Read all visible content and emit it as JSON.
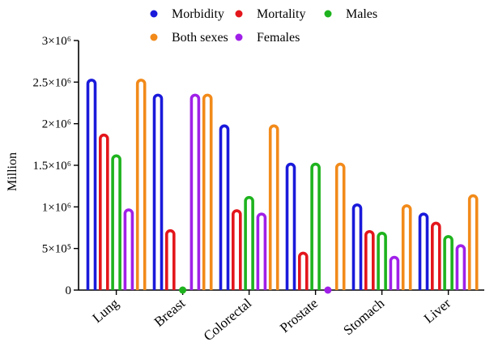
{
  "chart_data": {
    "type": "bar",
    "style": "lollipop-outline",
    "title": "",
    "xlabel": "",
    "ylabel": "Million",
    "ylim": [
      0,
      3000000
    ],
    "yticks": [
      {
        "value": 0,
        "label": "0"
      },
      {
        "value": 500000,
        "label": "5×10⁵"
      },
      {
        "value": 1000000,
        "label": "1×10⁶"
      },
      {
        "value": 1500000,
        "label": "1.5×10⁶"
      },
      {
        "value": 2000000,
        "label": "2×10⁶"
      },
      {
        "value": 2500000,
        "label": "2.5×10⁶"
      },
      {
        "value": 3000000,
        "label": "3×10⁶"
      }
    ],
    "categories": [
      "Lung",
      "Breast",
      "Colorectal",
      "Prostate",
      "Stomach",
      "Liver"
    ],
    "series": [
      {
        "name": "Morbidity",
        "color": "#1a1adb",
        "values": [
          2480000,
          2300000,
          1930000,
          1470000,
          980000,
          870000
        ]
      },
      {
        "name": "Mortality",
        "color": "#e3161c",
        "values": [
          1820000,
          670000,
          910000,
          400000,
          660000,
          760000
        ]
      },
      {
        "name": "Males",
        "color": "#1eb31e",
        "values": [
          1570000,
          0,
          1070000,
          1470000,
          640000,
          600000
        ]
      },
      {
        "name": "Females",
        "color": "#a020e8",
        "values": [
          920000,
          2300000,
          870000,
          0,
          350000,
          490000
        ]
      },
      {
        "name": "Both sexes",
        "color": "#f28a1a",
        "values": [
          2480000,
          2300000,
          1930000,
          1470000,
          970000,
          1090000
        ]
      }
    ],
    "legend": {
      "placement": "top",
      "rows": [
        [
          "Morbidity",
          "Mortality",
          "Males"
        ],
        [
          "Both sexes",
          "Females"
        ]
      ]
    },
    "grid": false
  }
}
